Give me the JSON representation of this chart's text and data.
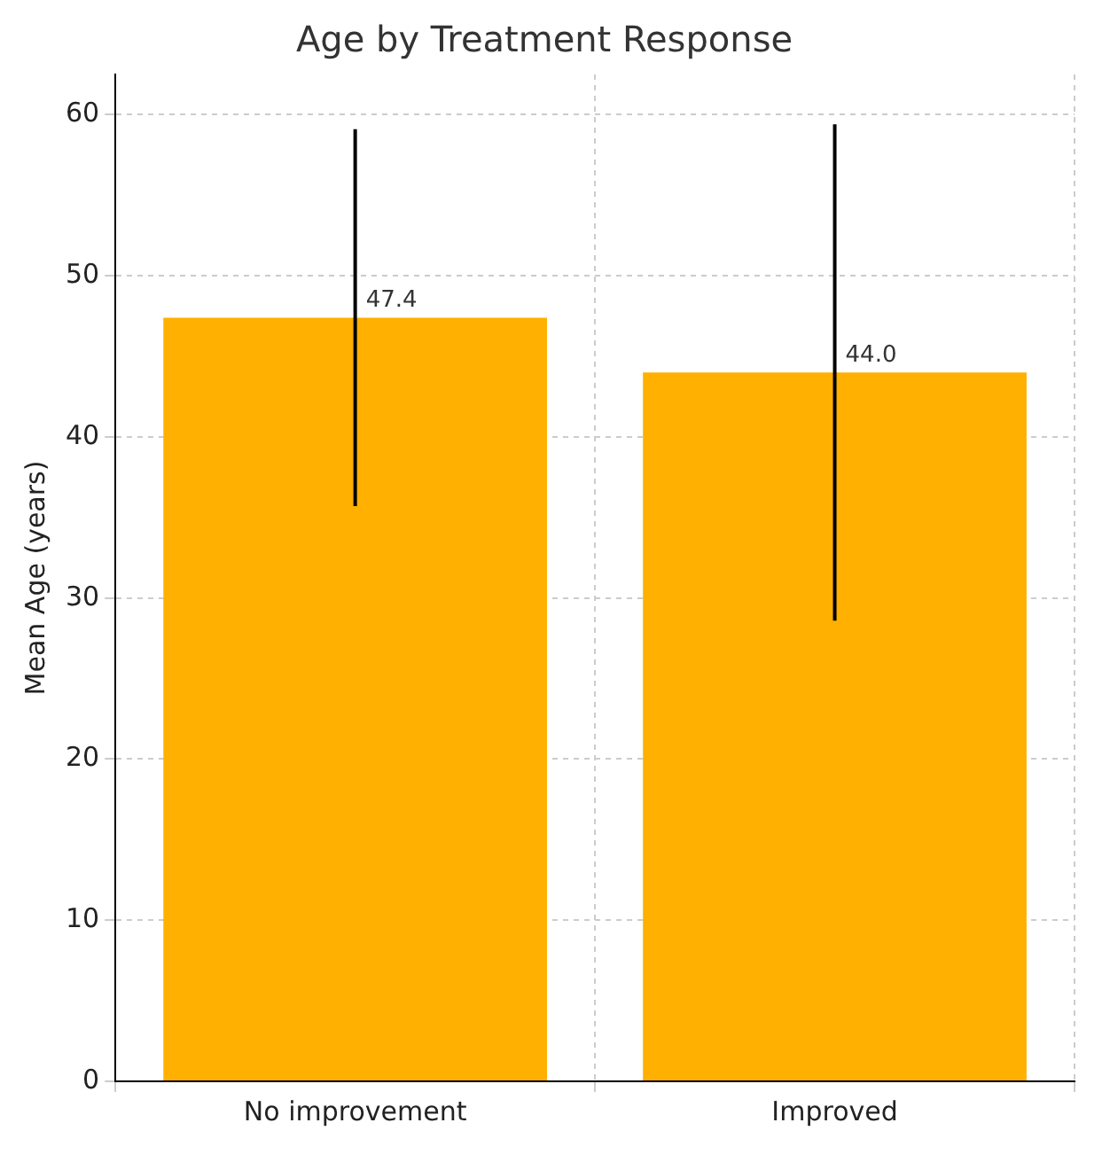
{
  "chart_data": {
    "type": "bar",
    "title": "Age by Treatment Response",
    "ylabel": "Mean Age (years)",
    "categories": [
      "No improvement",
      "Improved"
    ],
    "values": [
      47.4,
      44.0
    ],
    "errors": [
      11.7,
      15.4
    ],
    "color": "#ffb000",
    "ylim": [
      0,
      62.5
    ],
    "yticks": [
      0,
      10,
      20,
      30,
      40,
      50,
      60
    ],
    "value_labels": [
      "47.4",
      "44.0"
    ],
    "grid": true
  }
}
